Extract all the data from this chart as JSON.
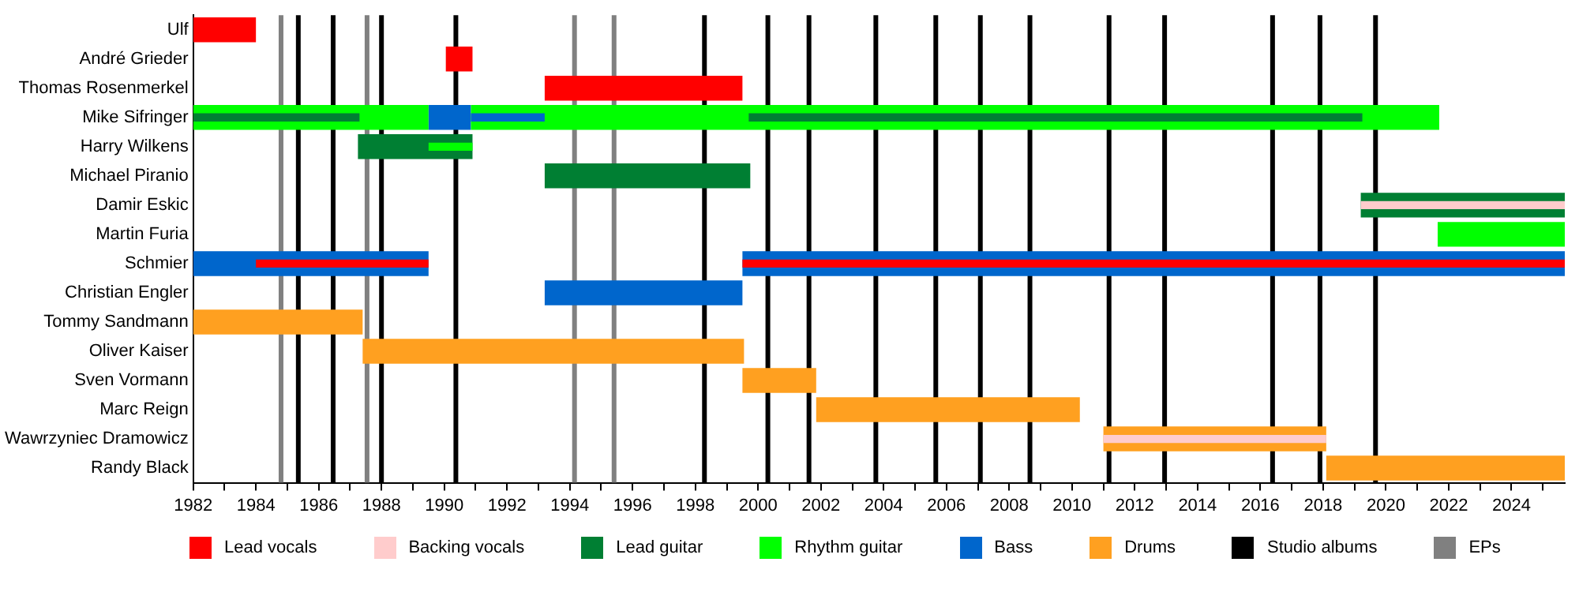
{
  "chart_data": {
    "type": "bar",
    "orientation": "horizontal",
    "legend": "bottom",
    "categories": [
      "Ulf",
      "André Grieder",
      "Thomas Rosenmerkel",
      "Mike Sifringer",
      "Harry Wilkens",
      "Michael Piranio",
      "Damir Eskic",
      "Martin Furia",
      "Schmier",
      "Christian Engler",
      "Tommy Sandmann",
      "Oliver Kaiser",
      "Sven Vormann",
      "Marc Reign",
      "Wawrzyniec Dramowicz",
      "Randy Black"
    ],
    "xlim": [
      1982,
      2025.7
    ],
    "xticks": [
      1982,
      {
        "value": 1983,
        "label": null
      },
      1984,
      {
        "value": 1985,
        "label": null
      },
      1986,
      {
        "value": 1987,
        "label": null
      },
      1988,
      {
        "value": 1989,
        "label": null
      },
      1990,
      {
        "value": 1991,
        "label": null
      },
      1992,
      {
        "value": 1993,
        "label": null
      },
      1994,
      {
        "value": 1995,
        "label": null
      },
      1996,
      {
        "value": 1997,
        "label": null
      },
      1998,
      {
        "value": 1999,
        "label": null
      },
      2000,
      {
        "value": 2001,
        "label": null
      },
      2002,
      {
        "value": 2003,
        "label": null
      },
      2004,
      {
        "value": 2005,
        "label": null
      },
      2006,
      {
        "value": 2007,
        "label": null
      },
      2008,
      {
        "value": 2009,
        "label": null
      },
      2010,
      {
        "value": 2011,
        "label": null
      },
      2012,
      {
        "value": 2013,
        "label": null
      },
      2014,
      {
        "value": 2015,
        "label": null
      },
      2016,
      {
        "value": 2017,
        "label": null
      },
      2018,
      {
        "value": 2019,
        "label": null
      },
      2020,
      {
        "value": 2021,
        "label": null
      },
      2022,
      {
        "value": 2023,
        "label": null
      },
      2024,
      {
        "value": 2025,
        "label": null
      }
    ],
    "series": [
      {
        "name": "Lead vocals",
        "color": "#ff0000",
        "values": [
          2,
          0.85,
          6.3,
          null,
          null,
          null,
          null,
          null,
          null,
          null,
          null,
          null,
          null,
          null,
          null,
          null
        ],
        "base": [
          1982,
          1990.05,
          1993.2,
          null,
          null,
          null,
          null,
          null,
          null,
          null,
          null,
          null,
          null,
          null,
          null,
          null
        ]
      },
      {
        "color": "#ff0000",
        "values": [
          null,
          null,
          null,
          null,
          null,
          null,
          null,
          null,
          5.5,
          null,
          null,
          null,
          null,
          null,
          null,
          null
        ],
        "base": [
          null,
          null,
          null,
          null,
          null,
          null,
          null,
          null,
          1984,
          null,
          null,
          null,
          null,
          null,
          null,
          null
        ]
      },
      {
        "color": "#ff0000",
        "values": [
          null,
          null,
          null,
          null,
          null,
          null,
          null,
          null,
          26.2,
          null,
          null,
          null,
          null,
          null,
          null,
          null
        ],
        "base": [
          null,
          null,
          null,
          null,
          null,
          null,
          null,
          null,
          1999.5,
          null,
          null,
          null,
          null,
          null,
          null,
          null
        ]
      },
      {
        "name": "Backing vocals",
        "color": "#ffcccc",
        "values": [
          null,
          null,
          null,
          null,
          null,
          null,
          6.5,
          null,
          null,
          null,
          null,
          null,
          null,
          null,
          7.1,
          null
        ],
        "base": [
          null,
          null,
          null,
          null,
          null,
          null,
          2019.2,
          null,
          null,
          null,
          null,
          null,
          null,
          null,
          2011,
          null
        ]
      },
      {
        "name": "Lead guitar",
        "color": "#007f33",
        "values": [
          null,
          null,
          null,
          5.3,
          3.65,
          6.55,
          6.5,
          null,
          null,
          null,
          null,
          null,
          null,
          null,
          null,
          null
        ],
        "base": [
          null,
          null,
          null,
          1982,
          1987.25,
          1993.2,
          2019.2,
          null,
          null,
          null,
          null,
          null,
          null,
          null,
          null,
          null
        ]
      },
      {
        "color": "#007f33",
        "values": [
          null,
          null,
          null,
          19.55,
          null,
          null,
          null,
          null,
          null,
          null,
          null,
          null,
          null,
          null,
          null,
          null
        ],
        "base": [
          null,
          null,
          null,
          1999.7,
          null,
          null,
          null,
          null,
          null,
          null,
          null,
          null,
          null,
          null,
          null,
          null
        ]
      },
      {
        "name": "Rhythm guitar",
        "color": "#00ff00",
        "values": [
          null,
          null,
          null,
          7.5,
          1.4,
          null,
          null,
          4.05,
          null,
          null,
          null,
          null,
          null,
          null,
          null,
          null
        ],
        "base": [
          null,
          null,
          null,
          1982,
          1989.5,
          null,
          null,
          2021.65,
          null,
          null,
          null,
          null,
          null,
          null,
          null,
          null
        ]
      },
      {
        "color": "#00ff00",
        "values": [
          null,
          null,
          null,
          30.85,
          null,
          null,
          null,
          null,
          null,
          null,
          null,
          null,
          null,
          null,
          null,
          null
        ],
        "base": [
          null,
          null,
          null,
          1990.85,
          null,
          null,
          null,
          null,
          null,
          null,
          null,
          null,
          null,
          null,
          null,
          null
        ]
      },
      {
        "name": "Bass",
        "color": "#0066cc",
        "values": [
          null,
          null,
          null,
          1.35,
          null,
          null,
          null,
          null,
          7.5,
          6.3,
          null,
          null,
          null,
          null,
          null,
          null
        ],
        "base": [
          null,
          null,
          null,
          1989.5,
          null,
          null,
          null,
          null,
          1982,
          1993.2,
          null,
          null,
          null,
          null,
          null,
          null
        ]
      },
      {
        "color": "#0066cc",
        "values": [
          null,
          null,
          null,
          2.35,
          null,
          null,
          null,
          null,
          26.2,
          null,
          null,
          null,
          null,
          null,
          null,
          null
        ],
        "base": [
          null,
          null,
          null,
          1990.85,
          null,
          null,
          null,
          null,
          1999.5,
          null,
          null,
          null,
          null,
          null,
          null,
          null
        ]
      },
      {
        "name": "Drums",
        "color": "#ffa020",
        "values": [
          null,
          null,
          null,
          null,
          null,
          null,
          null,
          null,
          null,
          null,
          5.4,
          12.15,
          2.35,
          8.4,
          7.1,
          7.6
        ],
        "base": [
          null,
          null,
          null,
          null,
          null,
          null,
          null,
          null,
          null,
          null,
          1982,
          1987.4,
          1999.5,
          2001.85,
          2011,
          2018.1
        ]
      }
    ],
    "ref_lines": [
      {
        "axis": "x",
        "value": 1985.35,
        "label": "Studio albums",
        "color": "#000000"
      },
      {
        "axis": "x",
        "value": 1986.46,
        "color": "#000000"
      },
      {
        "axis": "x",
        "value": 1988.0,
        "color": "#000000"
      },
      {
        "axis": "x",
        "value": 1990.37,
        "color": "#000000"
      },
      {
        "axis": "x",
        "value": 1998.29,
        "color": "#000000"
      },
      {
        "axis": "x",
        "value": 2000.31,
        "color": "#000000"
      },
      {
        "axis": "x",
        "value": 2001.62,
        "color": "#000000"
      },
      {
        "axis": "x",
        "value": 2003.75,
        "color": "#000000"
      },
      {
        "axis": "x",
        "value": 2005.66,
        "color": "#000000"
      },
      {
        "axis": "x",
        "value": 2007.08,
        "color": "#000000"
      },
      {
        "axis": "x",
        "value": 2008.66,
        "color": "#000000"
      },
      {
        "axis": "x",
        "value": 2011.18,
        "color": "#000000"
      },
      {
        "axis": "x",
        "value": 2012.95,
        "color": "#000000"
      },
      {
        "axis": "x",
        "value": 2016.39,
        "color": "#000000"
      },
      {
        "axis": "x",
        "value": 2017.9,
        "color": "#000000"
      },
      {
        "axis": "x",
        "value": 2019.67,
        "color": "#000000"
      },
      {
        "axis": "x",
        "value": 1984.8,
        "label": "EPs",
        "color": "#808080"
      },
      {
        "axis": "x",
        "value": 1987.54,
        "color": "#808080"
      },
      {
        "axis": "x",
        "value": 1994.15,
        "color": "#808080"
      },
      {
        "axis": "x",
        "value": 1995.41,
        "color": "#808080"
      }
    ]
  }
}
